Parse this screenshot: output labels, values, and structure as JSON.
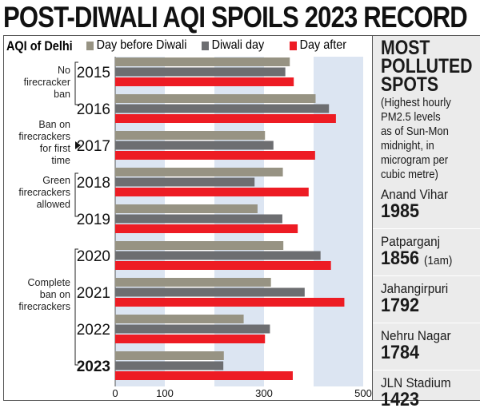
{
  "title": "POST-DIWALI AQI SPOILS 2023 RECORD",
  "chart_data": {
    "type": "bar",
    "orientation": "horizontal",
    "title": "AQI of Delhi",
    "categories": [
      "2015",
      "2016",
      "2017",
      "2018",
      "2019",
      "2020",
      "2021",
      "2022",
      "2023"
    ],
    "series": [
      {
        "name": "Day before Diwali",
        "color": "#979383",
        "values": [
          352,
          404,
          302,
          338,
          287,
          339,
          314,
          259,
          219
        ]
      },
      {
        "name": "Diwali day",
        "color": "#6d6e71",
        "values": [
          343,
          431,
          319,
          281,
          337,
          414,
          382,
          312,
          218
        ]
      },
      {
        "name": "Day after",
        "color": "#ed1c24",
        "values": [
          360,
          445,
          403,
          390,
          368,
          435,
          462,
          302,
          358
        ]
      }
    ],
    "xlim": [
      0,
      500
    ],
    "xticks": [
      "0",
      "100",
      "300",
      "500"
    ],
    "shaded_bands": [
      [
        0,
        100
      ],
      [
        200,
        300
      ],
      [
        400,
        500
      ]
    ],
    "band_color": "#dce5f2",
    "highlighted_categories": [
      "2017",
      "2023"
    ],
    "annotations": [
      {
        "text": "No firecracker ban",
        "years": [
          "2015",
          "2016"
        ]
      },
      {
        "text": "Ban on firecrackers for first time",
        "years": [
          "2017"
        ]
      },
      {
        "text": "Green firecrackers allowed",
        "years": [
          "2018",
          "2019"
        ]
      },
      {
        "text": "Complete ban on firecrackers",
        "years": [
          "2020",
          "2021",
          "2022",
          "2023"
        ]
      }
    ]
  },
  "sidebar": {
    "heading": [
      "MOST",
      "POLLUTED",
      "SPOTS"
    ],
    "note": [
      "(Highest hourly",
      "PM2.5 levels",
      "as of Sun-Mon",
      "midnight, in",
      "microgram per",
      "cubic metre)"
    ],
    "spots": [
      {
        "name": "Anand Vihar",
        "value": "1985",
        "note": ""
      },
      {
        "name": "Patparganj",
        "value": "1856",
        "note": "(1am)"
      },
      {
        "name": "Jahangirpuri",
        "value": "1792",
        "note": ""
      },
      {
        "name": "Nehru Nagar",
        "value": "1784",
        "note": ""
      },
      {
        "name": "JLN Stadium",
        "value": "1423",
        "note": ""
      }
    ]
  }
}
